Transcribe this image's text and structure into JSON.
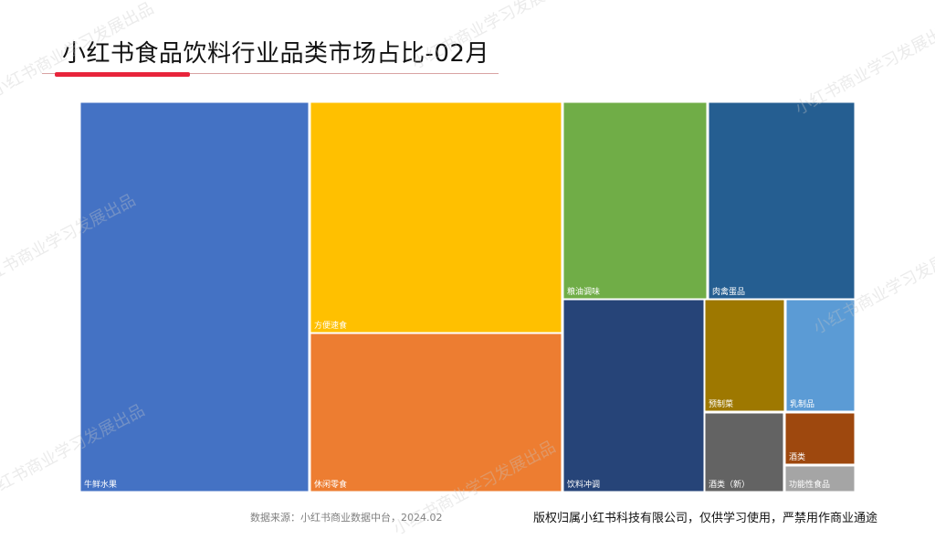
{
  "title": "小红书食品饮料行业品类市场占比-02月",
  "source": "数据来源：小红书商业数据中台，2024.02",
  "copyright": "版权归属小红书科技有限公司，仅供学习使用，严禁用作商业通途",
  "watermark": "小红书商业学习发展出品",
  "chart_data": {
    "type": "treemap",
    "title": "小红书食品饮料行业品类市场占比-02月",
    "series": [
      {
        "name": "牛鲜水果",
        "value": 30.4,
        "color": "#4472c4"
      },
      {
        "name": "方便速食",
        "value": 18.6,
        "color": "#ffc000"
      },
      {
        "name": "休闲零食",
        "value": 14.6,
        "color": "#ed7d31"
      },
      {
        "name": "粮油调味",
        "value": 7.1,
        "color": "#70ad47"
      },
      {
        "name": "肉禽蛋品",
        "value": 7.3,
        "color": "#255e91"
      },
      {
        "name": "饮料冲调",
        "value": 7.8,
        "color": "#264478"
      },
      {
        "name": "预制菜",
        "value": 2.8,
        "color": "#9e7800"
      },
      {
        "name": "乳制品",
        "value": 2.6,
        "color": "#5b9bd5"
      },
      {
        "name": "酒类（新）",
        "value": 1.9,
        "color": "#636363"
      },
      {
        "name": "酒类",
        "value": 1.3,
        "color": "#9e480e"
      },
      {
        "name": "功能性食品",
        "value": 0.7,
        "color": "#a5a5a5"
      }
    ]
  }
}
